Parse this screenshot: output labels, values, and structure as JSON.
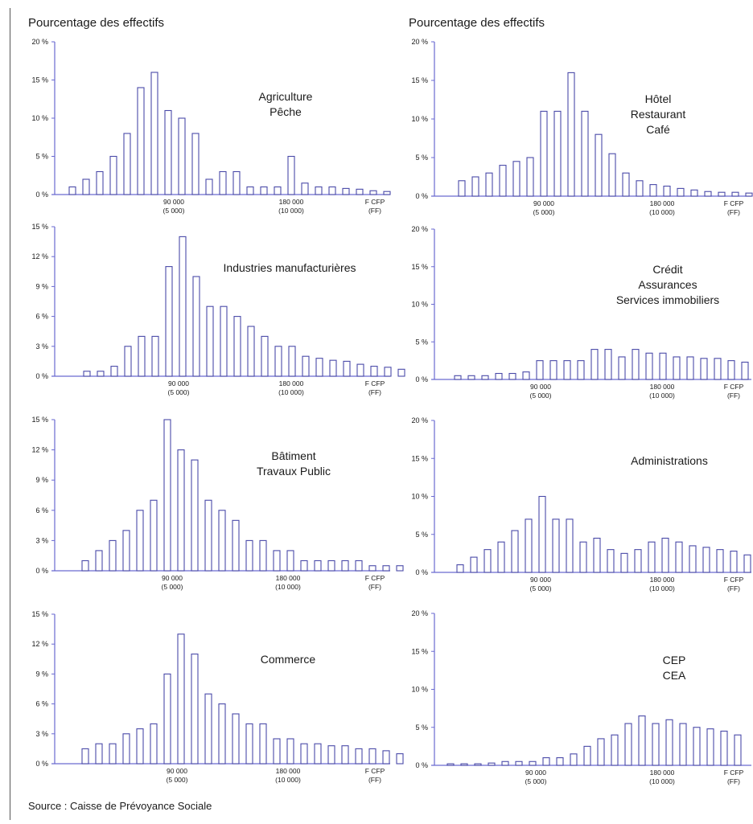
{
  "header_left": "Pourcentage des effectifs",
  "header_right": "Pourcentage des effectifs",
  "source": "Source : Caisse de Prévoyance Sociale",
  "colors": {
    "bar_stroke": "#4a4aa8",
    "axis": "#6a6ad0",
    "text": "#1a1a1a"
  },
  "chart_data": [
    {
      "type": "bar",
      "title_lines": [
        "Agriculture",
        "Pêche"
      ],
      "yticks": [
        "20 %",
        "15 %",
        "10 %",
        "5 %",
        "0 %"
      ],
      "ylim": [
        0,
        20
      ],
      "xticks": [
        {
          "value": "90 000",
          "sub": "(5 000)"
        },
        {
          "value": "180 000",
          "sub": "(10 000)"
        },
        {
          "value": "F CFP",
          "sub": "(FF)"
        }
      ],
      "values": [
        1,
        2,
        3,
        5,
        8,
        14,
        16,
        11,
        10,
        8,
        2,
        3,
        3,
        1,
        1,
        1,
        5,
        1.5,
        1,
        1,
        0.8,
        0.7,
        0.5,
        0.4
      ]
    },
    {
      "type": "bar",
      "title_lines": [
        "Hôtel",
        "Restaurant",
        "Café"
      ],
      "yticks": [
        "20 %",
        "15 %",
        "10 %",
        "5 %",
        "0 %"
      ],
      "ylim": [
        0,
        20
      ],
      "xticks": [
        {
          "value": "90 000",
          "sub": "(5 000)"
        },
        {
          "value": "180 000",
          "sub": "(10 000)"
        },
        {
          "value": "F CFP",
          "sub": "(FF)"
        }
      ],
      "values": [
        2,
        2.5,
        3,
        4,
        4.5,
        5,
        11,
        11,
        16,
        11,
        8,
        5.5,
        3,
        2,
        1.5,
        1.3,
        1,
        0.8,
        0.6,
        0.5,
        0.5,
        0.4,
        0.3
      ]
    },
    {
      "type": "bar",
      "title_lines": [
        "Industries manufacturières"
      ],
      "yticks": [
        "15 %",
        "12 %",
        "9 %",
        "6 %",
        "3 %",
        "0 %"
      ],
      "ylim": [
        0,
        15
      ],
      "xticks": [
        {
          "value": "90 000",
          "sub": "(5 000)"
        },
        {
          "value": "180 000",
          "sub": "(10 000)"
        },
        {
          "value": "F CFP",
          "sub": "(FF)"
        }
      ],
      "values": [
        0.5,
        0.5,
        1,
        3,
        4,
        4,
        11,
        14,
        10,
        7,
        7,
        6,
        5,
        4,
        3,
        3,
        2,
        1.8,
        1.6,
        1.5,
        1.2,
        1,
        0.9,
        0.7
      ]
    },
    {
      "type": "bar",
      "title_lines": [
        "Crédit",
        "Assurances",
        "Services immobiliers"
      ],
      "yticks": [
        "20 %",
        "15 %",
        "10 %",
        "5 %",
        "0 %"
      ],
      "ylim": [
        0,
        20
      ],
      "xticks": [
        {
          "value": "90 000",
          "sub": "(5 000)"
        },
        {
          "value": "180 000",
          "sub": "(10 000)"
        },
        {
          "value": "F CFP",
          "sub": "(FF)"
        }
      ],
      "values": [
        0.5,
        0.5,
        0.5,
        0.8,
        0.8,
        1,
        2.5,
        2.5,
        2.5,
        2.5,
        4,
        4,
        3,
        4,
        3.5,
        3.5,
        3,
        3,
        2.8,
        2.8,
        2.5,
        2.3,
        2
      ]
    },
    {
      "type": "bar",
      "title_lines": [
        "Bâtiment",
        "Travaux Public"
      ],
      "yticks": [
        "15 %",
        "12 %",
        "9 %",
        "6 %",
        "3 %",
        "0 %"
      ],
      "ylim": [
        0,
        15
      ],
      "xticks": [
        {
          "value": "90 000",
          "sub": "(5 000)"
        },
        {
          "value": "180 000",
          "sub": "(10 000)"
        },
        {
          "value": "F CFP",
          "sub": "(FF)"
        }
      ],
      "values": [
        1,
        2,
        3,
        4,
        6,
        7,
        15,
        12,
        11,
        7,
        6,
        5,
        3,
        3,
        2,
        2,
        1,
        1,
        1,
        1,
        1,
        0.5,
        0.5,
        0.5
      ]
    },
    {
      "type": "bar",
      "title_lines": [
        "Administrations"
      ],
      "yticks": [
        "20 %",
        "15 %",
        "10 %",
        "5 %",
        "0 %"
      ],
      "ylim": [
        0,
        20
      ],
      "xticks": [
        {
          "value": "90 000",
          "sub": "(5 000)"
        },
        {
          "value": "180 000",
          "sub": "(10 000)"
        },
        {
          "value": "F CFP",
          "sub": "(FF)"
        }
      ],
      "values": [
        1,
        2,
        3,
        4,
        5.5,
        7,
        10,
        7,
        7,
        4,
        4.5,
        3,
        2.5,
        3,
        4,
        4.5,
        4,
        3.5,
        3.3,
        3,
        2.8,
        2.3,
        2
      ]
    },
    {
      "type": "bar",
      "title_lines": [
        "Commerce"
      ],
      "yticks": [
        "15 %",
        "12 %",
        "9 %",
        "6 %",
        "3 %",
        "0 %"
      ],
      "ylim": [
        0,
        15
      ],
      "xticks": [
        {
          "value": "90 000",
          "sub": "(5 000)"
        },
        {
          "value": "180 000",
          "sub": "(10 000)"
        },
        {
          "value": "F CFP",
          "sub": "(FF)"
        }
      ],
      "values": [
        1.5,
        2,
        2,
        3,
        3.5,
        4,
        9,
        13,
        11,
        7,
        6,
        5,
        4,
        4,
        2.5,
        2.5,
        2,
        2,
        1.8,
        1.8,
        1.5,
        1.5,
        1.3,
        1
      ]
    },
    {
      "type": "bar",
      "title_lines": [
        "CEP",
        "CEA"
      ],
      "yticks": [
        "20 %",
        "15 %",
        "10 %",
        "5 %",
        "0 %"
      ],
      "ylim": [
        0,
        20
      ],
      "xticks": [
        {
          "value": "90 000",
          "sub": "(5 000)"
        },
        {
          "value": "180 000",
          "sub": "(10 000)"
        },
        {
          "value": "F CFP",
          "sub": "(FF)"
        }
      ],
      "values": [
        0.2,
        0.2,
        0.2,
        0.3,
        0.5,
        0.5,
        0.5,
        1,
        1,
        1.5,
        2.5,
        3.5,
        4,
        5.5,
        6.5,
        5.5,
        6,
        5.5,
        5,
        4.8,
        4.5,
        4
      ]
    }
  ]
}
